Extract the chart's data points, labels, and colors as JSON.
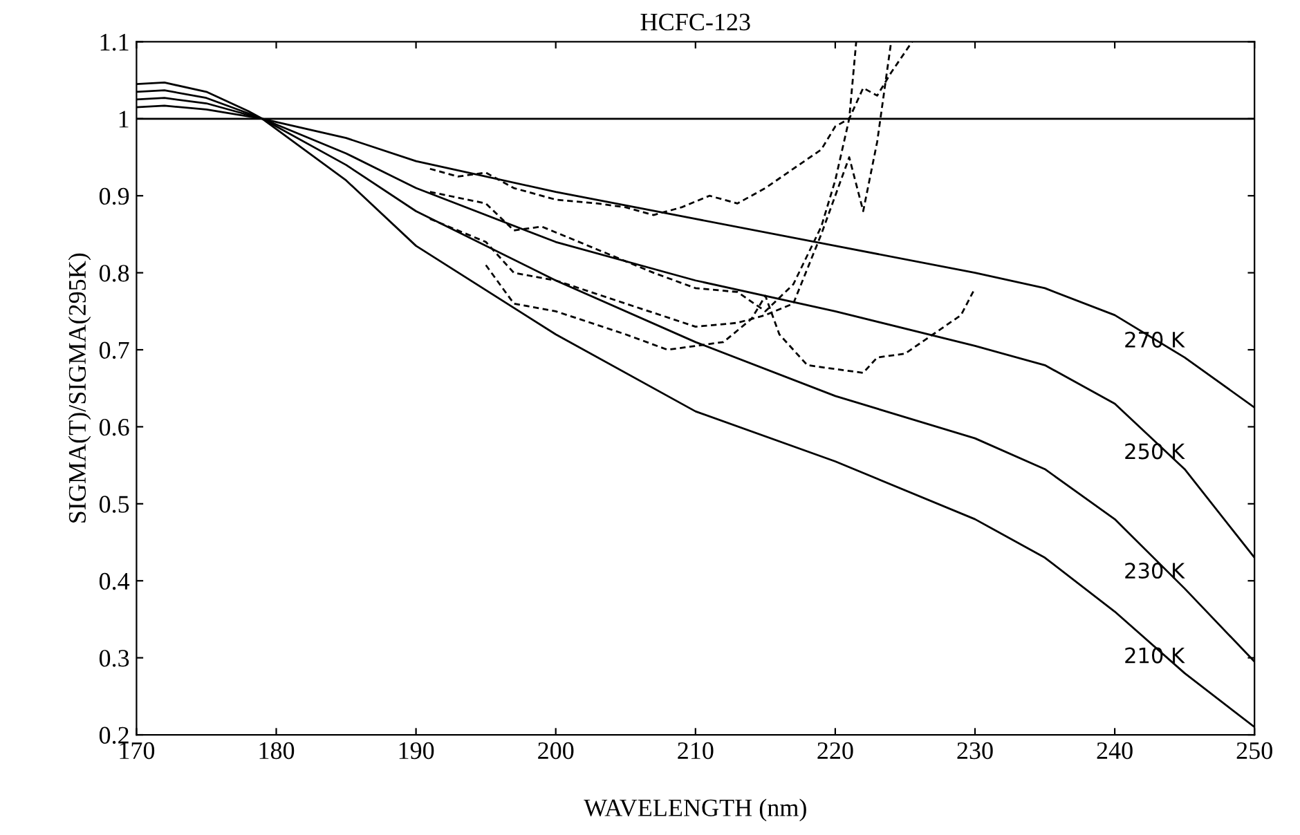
{
  "chart_data": {
    "type": "line",
    "title": "HCFC-123",
    "xlabel": "WAVELENGTH (nm)",
    "ylabel": "SIGMA(T)/SIGMA(295K)",
    "xlim": [
      170,
      250
    ],
    "ylim": [
      0.2,
      1.1
    ],
    "xticks": [
      170,
      180,
      190,
      200,
      210,
      220,
      230,
      240,
      250
    ],
    "yticks": [
      0.2,
      0.3,
      0.4,
      0.5,
      0.6,
      0.7,
      0.8,
      0.9,
      1,
      1.1
    ],
    "grid": false,
    "legend": false,
    "marker": "none",
    "ref_lines": [
      {
        "axis": "y",
        "value": 1,
        "color": "#000000",
        "line_style": "solid"
      }
    ],
    "series": [
      {
        "name": "270 K",
        "color": "#000000",
        "line_style": "solid",
        "x": [
          170,
          172,
          175,
          178,
          179,
          185,
          190,
          200,
          210,
          220,
          230,
          235,
          240,
          245,
          250
        ],
        "values": [
          1.015,
          1.017,
          1.012,
          1.003,
          1.0,
          0.975,
          0.945,
          0.905,
          0.87,
          0.835,
          0.8,
          0.78,
          0.745,
          0.69,
          0.625
        ]
      },
      {
        "name": "250 K",
        "color": "#000000",
        "line_style": "solid",
        "x": [
          170,
          172,
          175,
          178,
          179,
          185,
          190,
          200,
          210,
          220,
          230,
          235,
          240,
          245,
          250
        ],
        "values": [
          1.025,
          1.027,
          1.02,
          1.005,
          1.0,
          0.955,
          0.91,
          0.84,
          0.79,
          0.75,
          0.705,
          0.68,
          0.63,
          0.545,
          0.43
        ]
      },
      {
        "name": "230 K",
        "color": "#000000",
        "line_style": "solid",
        "x": [
          170,
          172,
          175,
          178,
          179,
          185,
          190,
          200,
          210,
          220,
          230,
          235,
          240,
          245,
          250
        ],
        "values": [
          1.035,
          1.037,
          1.027,
          1.007,
          1.0,
          0.94,
          0.88,
          0.79,
          0.71,
          0.64,
          0.585,
          0.545,
          0.48,
          0.39,
          0.295
        ]
      },
      {
        "name": "210 K",
        "color": "#000000",
        "line_style": "solid",
        "x": [
          170,
          172,
          175,
          178,
          179,
          185,
          190,
          200,
          210,
          220,
          230,
          235,
          240,
          245,
          250
        ],
        "values": [
          1.045,
          1.047,
          1.035,
          1.01,
          1.0,
          0.92,
          0.835,
          0.72,
          0.62,
          0.555,
          0.48,
          0.43,
          0.36,
          0.28,
          0.21
        ]
      },
      {
        "color": "#000000",
        "line_style": "dashed",
        "x": [
          191,
          193,
          195,
          197,
          200,
          203,
          205,
          207,
          209,
          211,
          213,
          215,
          217,
          219,
          220,
          221,
          222,
          223,
          224,
          225.5
        ],
        "values": [
          0.935,
          0.925,
          0.93,
          0.91,
          0.895,
          0.89,
          0.885,
          0.875,
          0.885,
          0.9,
          0.89,
          0.91,
          0.935,
          0.96,
          0.99,
          1.0,
          1.04,
          1.03,
          1.06,
          1.1
        ]
      },
      {
        "color": "#000000",
        "line_style": "dashed",
        "x": [
          191,
          195,
          197,
          199,
          203,
          207,
          210,
          213,
          215,
          217,
          219,
          220,
          221,
          221.5
        ],
        "values": [
          0.905,
          0.89,
          0.855,
          0.86,
          0.83,
          0.8,
          0.78,
          0.775,
          0.75,
          0.785,
          0.86,
          0.92,
          1.0,
          1.1
        ]
      },
      {
        "color": "#000000",
        "line_style": "dashed",
        "x": [
          191,
          195,
          197,
          200,
          205,
          210,
          213,
          215,
          217,
          219,
          221,
          222,
          223,
          224
        ],
        "values": [
          0.87,
          0.84,
          0.8,
          0.79,
          0.76,
          0.73,
          0.735,
          0.745,
          0.76,
          0.85,
          0.95,
          0.88,
          0.97,
          1.1
        ]
      },
      {
        "color": "#000000",
        "line_style": "dashed",
        "x": [
          195,
          197,
          200,
          205,
          208,
          212,
          214,
          215,
          216,
          218,
          220,
          222,
          223,
          225,
          227,
          229,
          230
        ],
        "values": [
          0.81,
          0.76,
          0.75,
          0.72,
          0.7,
          0.71,
          0.74,
          0.77,
          0.72,
          0.68,
          0.675,
          0.67,
          0.69,
          0.695,
          0.72,
          0.745,
          0.78
        ]
      }
    ]
  }
}
